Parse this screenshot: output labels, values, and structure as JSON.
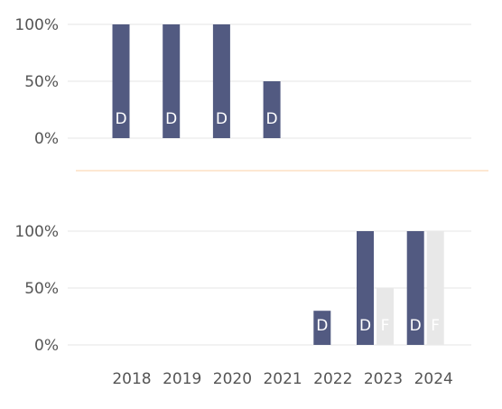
{
  "chart_data": [
    {
      "type": "bar",
      "categories": [
        "2018",
        "2019",
        "2020",
        "2021",
        "2022",
        "2023",
        "2024"
      ],
      "ylim": [
        0,
        100
      ],
      "yticks": [
        "0%",
        "50%",
        "100%"
      ],
      "grid": true,
      "series": [
        {
          "label": "D",
          "color": "#525a81",
          "values": [
            100,
            100,
            100,
            50,
            null,
            null,
            null
          ]
        }
      ]
    },
    {
      "type": "bar",
      "categories": [
        "2018",
        "2019",
        "2020",
        "2021",
        "2022",
        "2023",
        "2024"
      ],
      "ylim": [
        0,
        100
      ],
      "yticks": [
        "0%",
        "50%",
        "100%"
      ],
      "grid": true,
      "series": [
        {
          "label": "D",
          "color": "#525a81",
          "values": [
            null,
            null,
            null,
            null,
            30,
            100,
            100
          ]
        },
        {
          "label": "F",
          "color": "#e8e8e8",
          "values": [
            null,
            null,
            null,
            null,
            null,
            50,
            100
          ]
        }
      ]
    }
  ],
  "colors": {
    "grid": "#eeeeee",
    "separator": "#fde8d2",
    "tick_text": "#555555",
    "bar_label": "#ffffff"
  }
}
